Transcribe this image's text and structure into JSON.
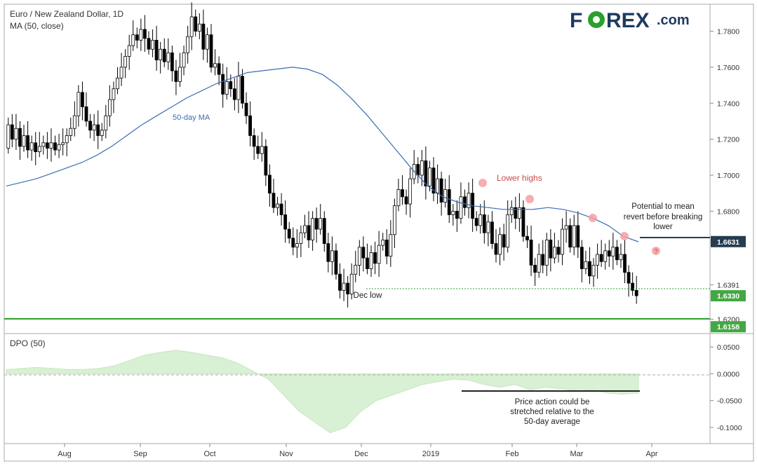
{
  "header": {
    "title": "Euro / New Zealand Dollar, 1D",
    "indicator": "MA (50, close)"
  },
  "logo": {
    "left": "F",
    "o": "O",
    "right": "REX",
    "suffix": ".com",
    "color_dark": "#1e3a5f",
    "color_green": "#2ca02c"
  },
  "colors": {
    "up_candle": "#ffffff",
    "down_candle": "#000000",
    "ma_line": "#3b6db3",
    "support_line": "#2ca02c",
    "marker": "#f5a0a0",
    "dpo_fill": "#d8f0d3",
    "axis_label_dark": "#263c50",
    "axis_label_green": "#43a843"
  },
  "annotations": {
    "ma_label": "50-day MA",
    "lower_highs": "Lower highs",
    "mean_revert_1": "Potential to mean",
    "mean_revert_2": "revert before breaking",
    "mean_revert_3": "lower",
    "question": "?",
    "dec_low": "Dec low",
    "dpo_note_1": "Price action could be",
    "dpo_note_2": "stretched relative to the",
    "dpo_note_3": "50-day average"
  },
  "price_axis": {
    "ticks": [
      "1.7800",
      "1.7600",
      "1.7400",
      "1.7200",
      "1.7000",
      "1.6800",
      "1.6391",
      "1.6200"
    ],
    "tags": [
      {
        "value": "1.6631",
        "style": "dark"
      },
      {
        "value": "1.6330",
        "style": "green"
      },
      {
        "value": "1.6158",
        "style": "green"
      }
    ]
  },
  "dpo_axis": {
    "title": "DPO (50)",
    "ticks": [
      "0.0500",
      "0.0000",
      "-0.0500",
      "-0.1000"
    ]
  },
  "time_axis": {
    "labels": [
      "Aug",
      "Sep",
      "Oct",
      "Nov",
      "Dec",
      "2019",
      "Feb",
      "Mar",
      "Apr"
    ]
  },
  "chart_data": {
    "type": "candlestick",
    "title": "Euro / New Zealand Dollar, 1D",
    "y_range": [
      1.612,
      1.795
    ],
    "candles_approx": [
      [
        1.715,
        1.728
      ],
      [
        1.728,
        1.72
      ],
      [
        1.72,
        1.726
      ],
      [
        1.726,
        1.716
      ],
      [
        1.716,
        1.722
      ],
      [
        1.722,
        1.714
      ],
      [
        1.714,
        1.718
      ],
      [
        1.718,
        1.713
      ],
      [
        1.713,
        1.716
      ],
      [
        1.716,
        1.718
      ],
      [
        1.718,
        1.715
      ],
      [
        1.715,
        1.718
      ],
      [
        1.718,
        1.714
      ],
      [
        1.714,
        1.717
      ],
      [
        1.717,
        1.718
      ],
      [
        1.718,
        1.722
      ],
      [
        1.722,
        1.726
      ],
      [
        1.726,
        1.733
      ],
      [
        1.733,
        1.746
      ],
      [
        1.746,
        1.738
      ],
      [
        1.738,
        1.73
      ],
      [
        1.73,
        1.725
      ],
      [
        1.725,
        1.728
      ],
      [
        1.728,
        1.722
      ],
      [
        1.722,
        1.725
      ],
      [
        1.725,
        1.733
      ],
      [
        1.733,
        1.742
      ],
      [
        1.742,
        1.748
      ],
      [
        1.748,
        1.754
      ],
      [
        1.754,
        1.76
      ],
      [
        1.76,
        1.766
      ],
      [
        1.766,
        1.772
      ],
      [
        1.772,
        1.778
      ],
      [
        1.778,
        1.775
      ],
      [
        1.775,
        1.781
      ],
      [
        1.781,
        1.776
      ],
      [
        1.776,
        1.77
      ],
      [
        1.77,
        1.775
      ],
      [
        1.775,
        1.764
      ],
      [
        1.764,
        1.77
      ],
      [
        1.77,
        1.763
      ],
      [
        1.763,
        1.768
      ],
      [
        1.768,
        1.758
      ],
      [
        1.758,
        1.752
      ],
      [
        1.752,
        1.76
      ],
      [
        1.76,
        1.768
      ],
      [
        1.768,
        1.777
      ],
      [
        1.777,
        1.788
      ],
      [
        1.788,
        1.78
      ],
      [
        1.78,
        1.784
      ],
      [
        1.784,
        1.77
      ],
      [
        1.77,
        1.778
      ],
      [
        1.778,
        1.76
      ],
      [
        1.76,
        1.762
      ],
      [
        1.762,
        1.756
      ],
      [
        1.756,
        1.745
      ],
      [
        1.745,
        1.752
      ],
      [
        1.752,
        1.748
      ],
      [
        1.748,
        1.742
      ],
      [
        1.742,
        1.755
      ],
      [
        1.755,
        1.74
      ],
      [
        1.74,
        1.733
      ],
      [
        1.733,
        1.722
      ],
      [
        1.722,
        1.716
      ],
      [
        1.716,
        1.712
      ],
      [
        1.712,
        1.716
      ],
      [
        1.716,
        1.7
      ],
      [
        1.7,
        1.69
      ],
      [
        1.69,
        1.682
      ],
      [
        1.682,
        1.684
      ],
      [
        1.684,
        1.678
      ],
      [
        1.678,
        1.67
      ],
      [
        1.67,
        1.665
      ],
      [
        1.665,
        1.66
      ],
      [
        1.66,
        1.662
      ],
      [
        1.662,
        1.668
      ],
      [
        1.668,
        1.672
      ],
      [
        1.672,
        1.664
      ],
      [
        1.664,
        1.676
      ],
      [
        1.676,
        1.67
      ],
      [
        1.67,
        1.676
      ],
      [
        1.676,
        1.662
      ],
      [
        1.662,
        1.652
      ],
      [
        1.652,
        1.658
      ],
      [
        1.658,
        1.645
      ],
      [
        1.645,
        1.636
      ],
      [
        1.636,
        1.64
      ],
      [
        1.64,
        1.634
      ],
      [
        1.634,
        1.645
      ],
      [
        1.645,
        1.65
      ],
      [
        1.65,
        1.66
      ],
      [
        1.66,
        1.654
      ],
      [
        1.654,
        1.648
      ],
      [
        1.648,
        1.657
      ],
      [
        1.657,
        1.651
      ],
      [
        1.651,
        1.661
      ],
      [
        1.661,
        1.664
      ],
      [
        1.664,
        1.655
      ],
      [
        1.655,
        1.667
      ],
      [
        1.667,
        1.683
      ],
      [
        1.683,
        1.692
      ],
      [
        1.692,
        1.688
      ],
      [
        1.688,
        1.684
      ],
      [
        1.684,
        1.698
      ],
      [
        1.698,
        1.706
      ],
      [
        1.706,
        1.7
      ],
      [
        1.7,
        1.708
      ],
      [
        1.708,
        1.694
      ],
      [
        1.694,
        1.704
      ],
      [
        1.704,
        1.69
      ],
      [
        1.69,
        1.698
      ],
      [
        1.698,
        1.685
      ],
      [
        1.685,
        1.692
      ],
      [
        1.692,
        1.678
      ],
      [
        1.678,
        1.68
      ],
      [
        1.68,
        1.676
      ],
      [
        1.676,
        1.688
      ],
      [
        1.688,
        1.682
      ],
      [
        1.682,
        1.69
      ],
      [
        1.69,
        1.676
      ],
      [
        1.676,
        1.672
      ],
      [
        1.672,
        1.678
      ],
      [
        1.678,
        1.668
      ],
      [
        1.668,
        1.674
      ],
      [
        1.674,
        1.662
      ],
      [
        1.662,
        1.656
      ],
      [
        1.656,
        1.667
      ],
      [
        1.667,
        1.66
      ],
      [
        1.66,
        1.678
      ],
      [
        1.678,
        1.682
      ],
      [
        1.682,
        1.676
      ],
      [
        1.676,
        1.682
      ],
      [
        1.682,
        1.666
      ],
      [
        1.666,
        1.664
      ],
      [
        1.664,
        1.65
      ],
      [
        1.65,
        1.646
      ],
      [
        1.646,
        1.656
      ],
      [
        1.656,
        1.65
      ],
      [
        1.65,
        1.664
      ],
      [
        1.664,
        1.654
      ],
      [
        1.654,
        1.66
      ],
      [
        1.66,
        1.656
      ],
      [
        1.656,
        1.67
      ],
      [
        1.67,
        1.672
      ],
      [
        1.672,
        1.66
      ],
      [
        1.66,
        1.672
      ],
      [
        1.672,
        1.66
      ],
      [
        1.66,
        1.648
      ],
      [
        1.648,
        1.652
      ],
      [
        1.652,
        1.644
      ],
      [
        1.644,
        1.65
      ],
      [
        1.65,
        1.656
      ],
      [
        1.656,
        1.652
      ],
      [
        1.652,
        1.658
      ],
      [
        1.658,
        1.655
      ],
      [
        1.655,
        1.66
      ],
      [
        1.66,
        1.653
      ],
      [
        1.653,
        1.656
      ],
      [
        1.656,
        1.646
      ],
      [
        1.646,
        1.64
      ],
      [
        1.64,
        1.636
      ],
      [
        1.636,
        1.633
      ]
    ],
    "ma50_approx": [
      1.694,
      1.696,
      1.698,
      1.701,
      1.704,
      1.707,
      1.711,
      1.716,
      1.722,
      1.728,
      1.733,
      1.738,
      1.743,
      1.747,
      1.751,
      1.754,
      1.757,
      1.758,
      1.759,
      1.76,
      1.759,
      1.756,
      1.75,
      1.742,
      1.733,
      1.723,
      1.713,
      1.703,
      1.694,
      1.688,
      1.685,
      1.683,
      1.682,
      1.681,
      1.681,
      1.681,
      1.682,
      1.681,
      1.679,
      1.676,
      1.672,
      1.666,
      1.663
    ],
    "dpo_approx": [
      0.008,
      0.01,
      0.012,
      0.01,
      0.008,
      0.008,
      0.01,
      0.015,
      0.025,
      0.035,
      0.04,
      0.044,
      0.04,
      0.035,
      0.03,
      0.02,
      0.005,
      -0.01,
      -0.04,
      -0.07,
      -0.09,
      -0.11,
      -0.1,
      -0.07,
      -0.05,
      -0.04,
      -0.03,
      -0.02,
      -0.015,
      -0.01,
      -0.012,
      -0.02,
      -0.025,
      -0.02,
      -0.03,
      -0.025,
      -0.028,
      -0.032,
      -0.03,
      -0.036,
      -0.038,
      -0.036
    ],
    "levels": [
      {
        "label": "1.6631",
        "value": 1.6631
      },
      {
        "label": "1.6330",
        "value": 1.633
      },
      {
        "label": "1.6158",
        "value": 1.6158
      }
    ]
  }
}
